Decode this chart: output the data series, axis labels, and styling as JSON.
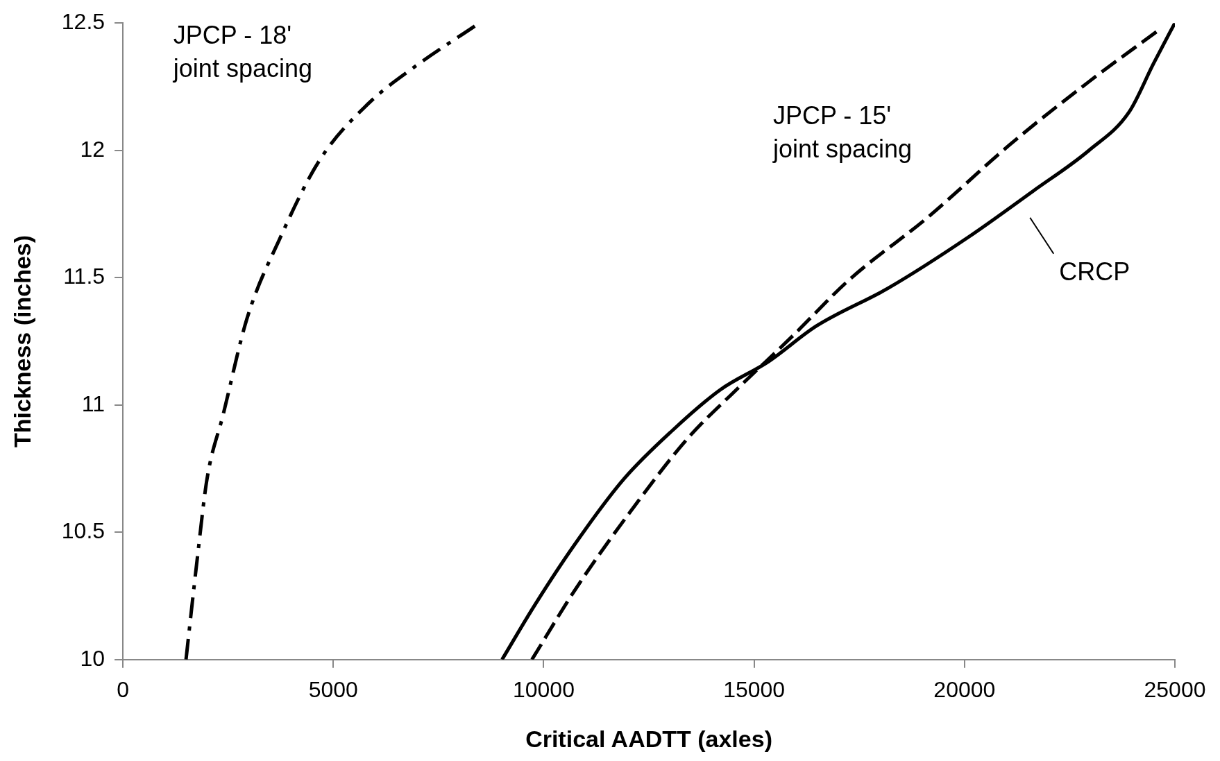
{
  "chart_data": {
    "type": "line",
    "xlabel": "Critical AADTT (axles)",
    "ylabel": "Thickness (inches)",
    "xlim": [
      0,
      25000
    ],
    "xticks": [
      0,
      5000,
      10000,
      15000,
      20000,
      25000
    ],
    "ylim": [
      10,
      12.5
    ],
    "yticks": [
      10,
      10.5,
      11,
      11.5,
      12,
      12.5
    ],
    "grid": false,
    "legend": false,
    "marker": "none",
    "series": [
      {
        "color": "#000000",
        "line_style": "dashdot",
        "x": [
          1500,
          1620,
          1770,
          2000,
          2380,
          2950,
          3720,
          4670,
          5810,
          6950,
          8380
        ],
        "values": [
          10,
          10.18,
          10.4,
          10.71,
          10.96,
          11.34,
          11.65,
          11.96,
          12.18,
          12.33,
          12.49
        ]
      },
      {
        "color": "#000000",
        "line_style": "dashed",
        "x": [
          9720,
          10770,
          12100,
          13430,
          14580,
          15910,
          17250,
          19150,
          21060,
          22960,
          24680
        ],
        "values": [
          10,
          10.28,
          10.59,
          10.87,
          11.06,
          11.27,
          11.49,
          11.74,
          12.02,
          12.27,
          12.48
        ]
      },
      {
        "color": "#000000",
        "line_style": "solid",
        "x": [
          9010,
          9810,
          10770,
          11910,
          13060,
          14200,
          15340,
          16480,
          18200,
          20100,
          21630,
          22960,
          23910,
          24490,
          24870,
          25000
        ],
        "values": [
          10,
          10.22,
          10.46,
          10.71,
          10.9,
          11.06,
          11.17,
          11.31,
          11.46,
          11.66,
          11.84,
          12,
          12.15,
          12.34,
          12.46,
          12.5
        ]
      }
    ],
    "annotations": [
      "JPCP - 18'\njoint spacing",
      "JPCP - 15'\njoint spacing",
      "CRCP"
    ]
  }
}
